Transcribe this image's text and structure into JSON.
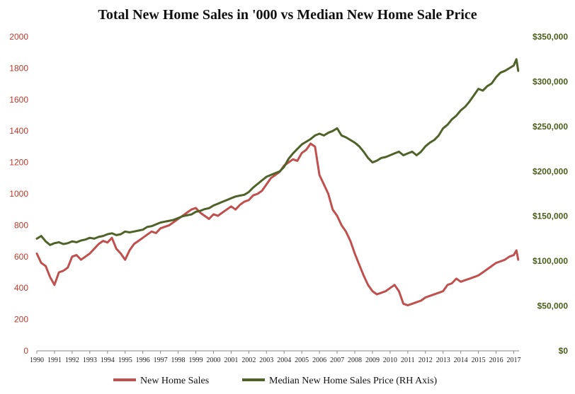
{
  "chart_data": {
    "type": "line",
    "title": "Total New Home Sales in '000 vs Median New Home Sale Price",
    "xlim": [
      1990,
      2017.3
    ],
    "ylim_left": [
      0,
      2000
    ],
    "ylim_right": [
      0,
      350000
    ],
    "left_ticks": [
      "0",
      "200",
      "400",
      "600",
      "800",
      "1000",
      "1200",
      "1400",
      "1600",
      "1800",
      "2000"
    ],
    "right_ticks": [
      "$0",
      "$50,000",
      "$100,000",
      "$150,000",
      "$200,000",
      "$250,000",
      "$300,000",
      "$350,000"
    ],
    "x_ticks": [
      "1990",
      "1991",
      "1992",
      "1993",
      "1994",
      "1995",
      "1996",
      "1997",
      "1998",
      "1999",
      "2000",
      "2001",
      "2002",
      "2003",
      "2004",
      "2005",
      "2006",
      "2007",
      "2008",
      "2009",
      "2010",
      "2011",
      "2012",
      "2013",
      "2014",
      "2015",
      "2016",
      "2017"
    ],
    "grid": false,
    "legend_position": "bottom",
    "series": [
      {
        "name": "New Home Sales",
        "axis": "left",
        "color": "#c0504d",
        "x": [
          1990.0,
          1990.25,
          1990.5,
          1990.75,
          1991.0,
          1991.25,
          1991.5,
          1991.75,
          1992.0,
          1992.25,
          1992.5,
          1992.75,
          1993.0,
          1993.25,
          1993.5,
          1993.75,
          1994.0,
          1994.25,
          1994.5,
          1994.75,
          1995.0,
          1995.25,
          1995.5,
          1995.75,
          1996.0,
          1996.25,
          1996.5,
          1996.75,
          1997.0,
          1997.25,
          1997.5,
          1997.75,
          1998.0,
          1998.25,
          1998.5,
          1998.75,
          1999.0,
          1999.25,
          1999.5,
          1999.75,
          2000.0,
          2000.25,
          2000.5,
          2000.75,
          2001.0,
          2001.25,
          2001.5,
          2001.75,
          2002.0,
          2002.25,
          2002.5,
          2002.75,
          2003.0,
          2003.25,
          2003.5,
          2003.75,
          2004.0,
          2004.25,
          2004.5,
          2004.75,
          2005.0,
          2005.25,
          2005.5,
          2005.75,
          2006.0,
          2006.25,
          2006.5,
          2006.75,
          2007.0,
          2007.25,
          2007.5,
          2007.75,
          2008.0,
          2008.25,
          2008.5,
          2008.75,
          2009.0,
          2009.25,
          2009.5,
          2009.75,
          2010.0,
          2010.25,
          2010.5,
          2010.75,
          2011.0,
          2011.25,
          2011.5,
          2011.75,
          2012.0,
          2012.25,
          2012.5,
          2012.75,
          2013.0,
          2013.25,
          2013.5,
          2013.75,
          2014.0,
          2014.25,
          2014.5,
          2014.75,
          2015.0,
          2015.25,
          2015.5,
          2015.75,
          2016.0,
          2016.25,
          2016.5,
          2016.75,
          2017.0,
          2017.15,
          2017.25
        ],
        "values": [
          620,
          560,
          540,
          470,
          420,
          500,
          510,
          530,
          600,
          610,
          580,
          600,
          620,
          650,
          680,
          700,
          690,
          720,
          650,
          620,
          580,
          640,
          680,
          700,
          720,
          740,
          760,
          750,
          780,
          790,
          800,
          820,
          840,
          860,
          880,
          900,
          910,
          880,
          860,
          840,
          870,
          860,
          880,
          900,
          920,
          900,
          930,
          950,
          960,
          990,
          1000,
          1020,
          1060,
          1100,
          1120,
          1140,
          1180,
          1200,
          1220,
          1210,
          1260,
          1280,
          1320,
          1300,
          1120,
          1060,
          1000,
          900,
          860,
          800,
          760,
          700,
          620,
          550,
          480,
          420,
          380,
          360,
          370,
          380,
          400,
          420,
          380,
          300,
          290,
          300,
          310,
          320,
          340,
          350,
          360,
          370,
          380,
          420,
          430,
          460,
          440,
          450,
          460,
          470,
          480,
          500,
          520,
          540,
          560,
          570,
          580,
          600,
          610,
          640,
          580
        ]
      },
      {
        "name": "Median New Home Sales Price (RH Axis)",
        "axis": "right",
        "color": "#4f6228",
        "x": [
          1990.0,
          1990.25,
          1990.5,
          1990.75,
          1991.0,
          1991.25,
          1991.5,
          1991.75,
          1992.0,
          1992.25,
          1992.5,
          1992.75,
          1993.0,
          1993.25,
          1993.5,
          1993.75,
          1994.0,
          1994.25,
          1994.5,
          1994.75,
          1995.0,
          1995.25,
          1995.5,
          1995.75,
          1996.0,
          1996.25,
          1996.5,
          1996.75,
          1997.0,
          1997.25,
          1997.5,
          1997.75,
          1998.0,
          1998.25,
          1998.5,
          1998.75,
          1999.0,
          1999.25,
          1999.5,
          1999.75,
          2000.0,
          2000.25,
          2000.5,
          2000.75,
          2001.0,
          2001.25,
          2001.5,
          2001.75,
          2002.0,
          2002.25,
          2002.5,
          2002.75,
          2003.0,
          2003.25,
          2003.5,
          2003.75,
          2004.0,
          2004.25,
          2004.5,
          2004.75,
          2005.0,
          2005.25,
          2005.5,
          2005.75,
          2006.0,
          2006.25,
          2006.5,
          2006.75,
          2007.0,
          2007.25,
          2007.5,
          2007.75,
          2008.0,
          2008.25,
          2008.5,
          2008.75,
          2009.0,
          2009.25,
          2009.5,
          2009.75,
          2010.0,
          2010.25,
          2010.5,
          2010.75,
          2011.0,
          2011.25,
          2011.5,
          2011.75,
          2012.0,
          2012.25,
          2012.5,
          2012.75,
          2013.0,
          2013.25,
          2013.5,
          2013.75,
          2014.0,
          2014.25,
          2014.5,
          2014.75,
          2015.0,
          2015.25,
          2015.5,
          2015.75,
          2016.0,
          2016.25,
          2016.5,
          2016.75,
          2017.0,
          2017.15,
          2017.25
        ],
        "values": [
          125000,
          128000,
          122000,
          118000,
          120000,
          121000,
          119000,
          120000,
          122000,
          121000,
          123000,
          124000,
          126000,
          125000,
          127000,
          128000,
          130000,
          131000,
          129000,
          130000,
          133000,
          132000,
          133000,
          134000,
          135000,
          138000,
          139000,
          141000,
          143000,
          144000,
          145000,
          146000,
          148000,
          150000,
          151000,
          152000,
          155000,
          156000,
          158000,
          159000,
          162000,
          164000,
          166000,
          168000,
          170000,
          172000,
          173000,
          174000,
          177000,
          182000,
          186000,
          190000,
          194000,
          196000,
          198000,
          200000,
          205000,
          214000,
          220000,
          225000,
          230000,
          233000,
          236000,
          240000,
          242000,
          240000,
          243000,
          245000,
          248000,
          240000,
          238000,
          235000,
          232000,
          228000,
          222000,
          215000,
          210000,
          212000,
          215000,
          216000,
          218000,
          220000,
          222000,
          218000,
          220000,
          222000,
          218000,
          222000,
          228000,
          232000,
          235000,
          240000,
          248000,
          252000,
          258000,
          262000,
          268000,
          272000,
          278000,
          285000,
          292000,
          290000,
          295000,
          298000,
          305000,
          310000,
          312000,
          315000,
          318000,
          325000,
          312000
        ]
      }
    ]
  }
}
